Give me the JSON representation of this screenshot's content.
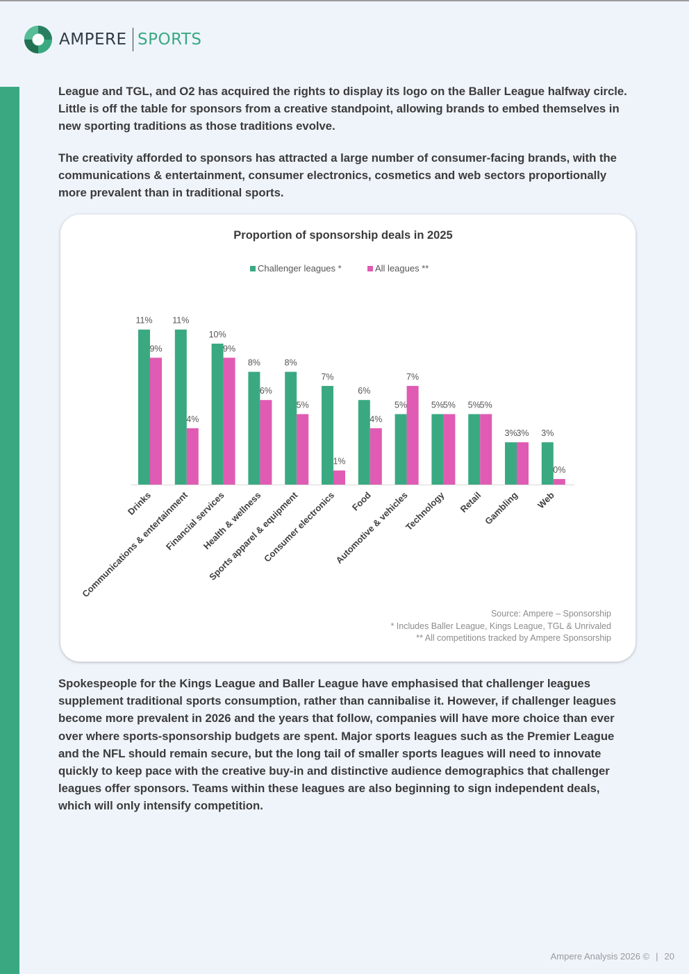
{
  "brand": {
    "name": "AMPERE",
    "division": "SPORTS",
    "green": "#3aa981",
    "pink": "#e05bb3"
  },
  "paragraphs": {
    "p1": "League and TGL, and O2 has acquired the rights to display its logo on the Baller League halfway circle. Little is off the table for sponsors from a creative standpoint, allowing brands to embed themselves in new sporting traditions as those traditions evolve.",
    "p2": "The creativity afforded to sponsors has attracted a large number of consumer-facing brands, with the communications & entertainment, consumer electronics, cosmetics and web sectors proportionally more prevalent than in traditional sports.",
    "p3": "Spokespeople for the Kings League and Baller League have emphasised that challenger leagues supplement traditional sports consumption, rather than cannibalise it. However, if challenger leagues become more prevalent in 2026 and the years that follow, companies will have more choice than ever over where sports-sponsorship budgets are spent. Major sports leagues such as the Premier League and the NFL should remain secure, but the long tail of smaller sports leagues will need to innovate quickly to keep pace with the creative buy-in and distinctive audience demographics that challenger leagues offer sponsors. Teams within these leagues are also beginning to sign independent deals, which will only intensify competition."
  },
  "chart_data": {
    "type": "bar",
    "title": "Proportion of sponsorship deals in 2025",
    "categories": [
      "Drinks",
      "Communications & entertainment",
      "Financial services",
      "Health & wellness",
      "Sports apparel & equipment",
      "Consumer electronics",
      "Food",
      "Automotive & vehicles",
      "Technology",
      "Retail",
      "Gambling",
      "Web"
    ],
    "series": [
      {
        "name": "Challenger leagues *",
        "color": "#3aa981",
        "values": [
          11,
          11,
          10,
          8,
          8,
          7,
          6,
          5,
          5,
          5,
          3,
          3
        ]
      },
      {
        "name": "All leagues **",
        "color": "#e05bb3",
        "values": [
          9,
          4,
          9,
          6,
          5,
          1,
          4,
          7,
          5,
          5,
          3,
          0
        ]
      }
    ],
    "legend_position": "top",
    "ylim": [
      0,
      13
    ],
    "grid": false,
    "notes": [
      "Source: Ampere – Sponsorship",
      "* Includes Baller League, Kings League, TGL & Unrivaled",
      "** All competitions tracked by Ampere Sponsorship"
    ]
  },
  "footer": {
    "text": "Ampere Analysis 2026 ©",
    "page": "20"
  }
}
